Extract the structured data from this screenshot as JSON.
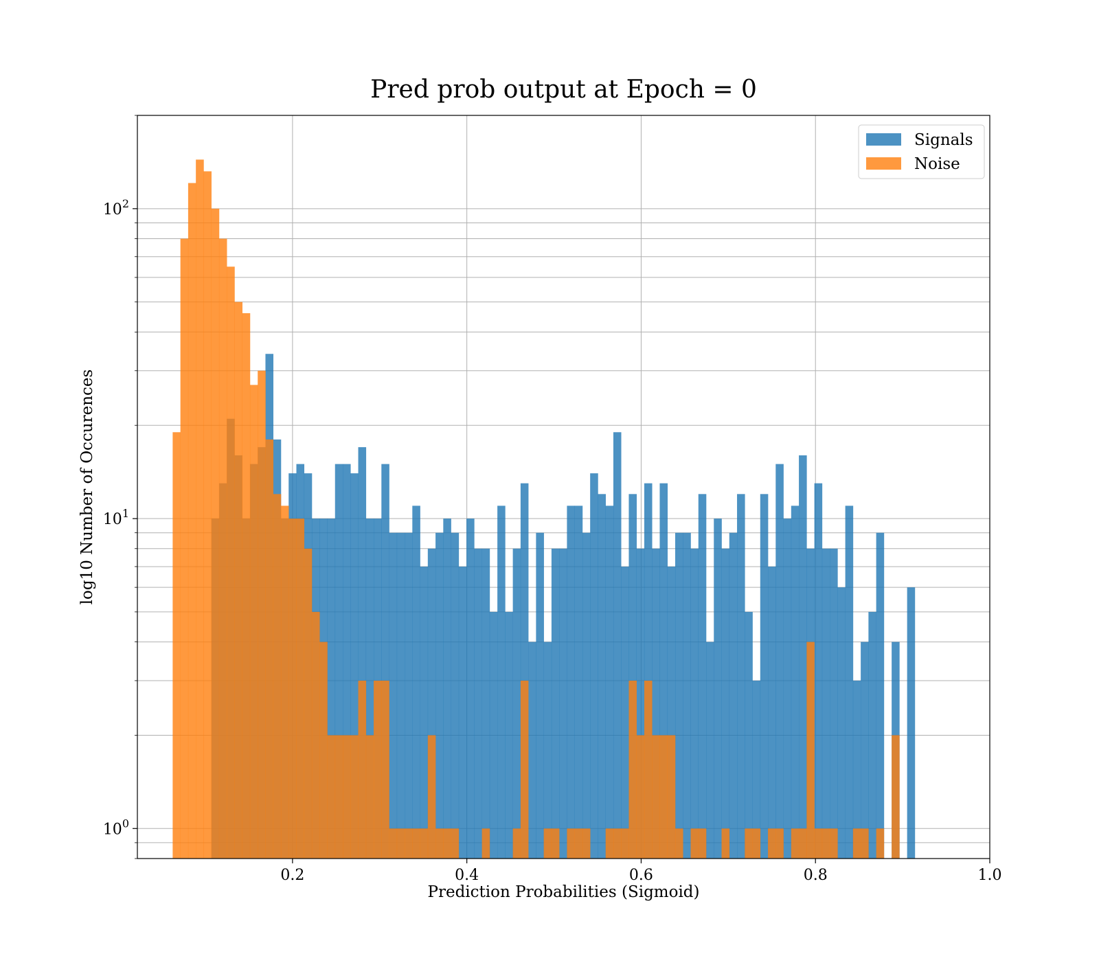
{
  "chart_data": {
    "type": "histogram",
    "title": "Pred prob output at Epoch = 0",
    "xlabel": "Prediction Probabilities (Sigmoid)",
    "ylabel": "log10 Number of Occurences",
    "xlim": [
      0.022,
      1.0
    ],
    "ylim": [
      0.8,
      200
    ],
    "yscale": "log",
    "grid": true,
    "legend_placement": "top-right",
    "x_ticks": [
      0.2,
      0.4,
      0.6,
      0.8,
      1.0
    ],
    "x_tick_labels": [
      "0.2",
      "0.4",
      "0.6",
      "0.8",
      "1.0"
    ],
    "y_ticks": [
      1,
      10,
      100
    ],
    "y_tick_labels": [
      {
        "base": "10",
        "exp": "0"
      },
      {
        "base": "10",
        "exp": "1"
      },
      {
        "base": "10",
        "exp": "2"
      }
    ],
    "bin_start": 0.0625,
    "bin_width": 0.00887,
    "series": [
      {
        "name": "Signals",
        "color": "#1f77b4",
        "opacity": 0.8,
        "values": [
          0,
          0,
          0,
          0,
          0,
          10,
          13,
          21,
          16,
          10,
          15,
          17,
          34,
          18,
          10,
          14,
          15,
          14,
          10,
          10,
          10,
          15,
          15,
          14,
          17,
          10,
          10,
          15,
          9,
          9,
          9,
          11,
          7,
          8,
          9,
          10,
          9,
          7,
          10,
          8,
          8,
          5,
          11,
          5,
          8,
          13,
          4,
          9,
          4,
          8,
          8,
          11,
          11,
          9,
          14,
          12,
          11,
          19,
          7,
          12,
          8,
          13,
          8,
          13,
          7,
          9,
          9,
          8,
          12,
          4,
          10,
          8,
          9,
          12,
          5,
          3,
          12,
          7,
          15,
          10,
          11,
          16,
          8,
          13,
          8,
          8,
          6,
          11,
          3,
          4,
          5,
          9,
          0,
          4,
          0,
          6
        ]
      },
      {
        "name": "Noise",
        "color": "#ff7f0e",
        "opacity": 0.8,
        "values": [
          19,
          80,
          121,
          144,
          132,
          100,
          80,
          65,
          50,
          46,
          27,
          30,
          18,
          12,
          11,
          10,
          10,
          8,
          5,
          4,
          2,
          2,
          2,
          2,
          3,
          2,
          3,
          3,
          1,
          1,
          1,
          1,
          1,
          2,
          1,
          1,
          1,
          0,
          0,
          0,
          1,
          0,
          0,
          0,
          1,
          3,
          0,
          0,
          1,
          1,
          0,
          1,
          1,
          1,
          0,
          0,
          1,
          1,
          1,
          3,
          2,
          3,
          2,
          2,
          2,
          1,
          0,
          1,
          1,
          0,
          0,
          1,
          0,
          0,
          1,
          1,
          0,
          1,
          1,
          0,
          1,
          1,
          4,
          1,
          1,
          1,
          0,
          0,
          1,
          1,
          0,
          1,
          0,
          2,
          0,
          0
        ]
      }
    ]
  }
}
